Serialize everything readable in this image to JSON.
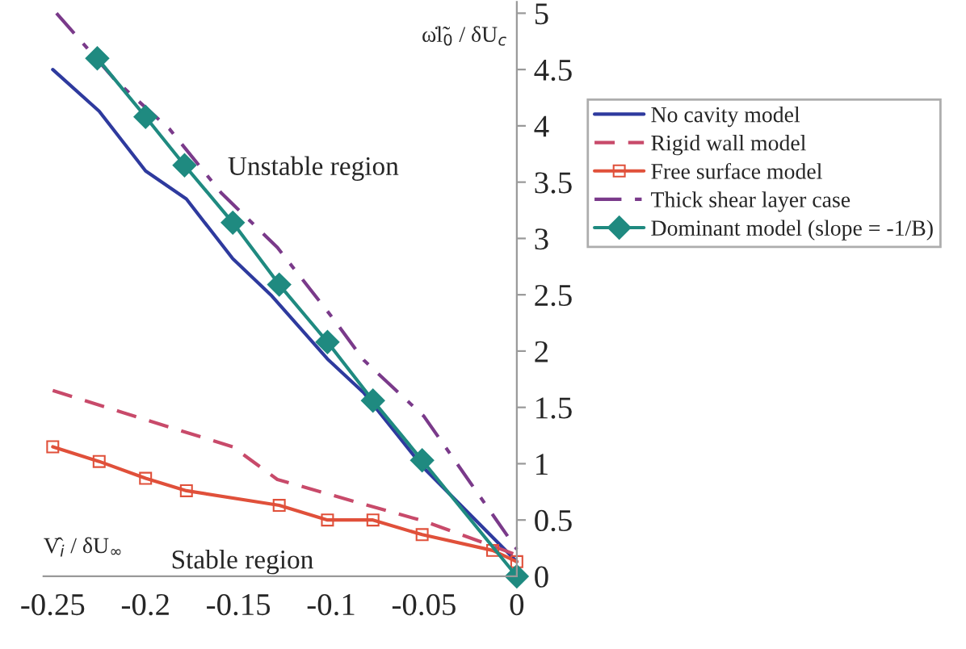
{
  "chart_data": {
    "type": "line",
    "xlabel": "V̂$_{i}$ / δU$_{∞}$",
    "ylabel": "ω̇l̃$_{0}$ / δU$_{c}$",
    "annotations": [
      "Unstable region",
      "Stable region"
    ],
    "series": [
      {
        "name": "No cavity model",
        "color": "#2e3a9e",
        "line_style": "solid",
        "marker": "none",
        "x": [
          -0.25,
          -0.225,
          -0.2,
          -0.178,
          -0.153,
          -0.132,
          -0.102,
          -0.0825,
          -0.066,
          -0.05,
          0
        ],
        "values": [
          4.5,
          4.13,
          3.6,
          3.35,
          2.82,
          2.49,
          1.93,
          1.63,
          1.29,
          0.96,
          0.13
        ]
      },
      {
        "name": "Rigid wall model",
        "color": "#c84a6a",
        "line_style": "dashed",
        "marker": "none",
        "x": [
          -0.25,
          -0.2,
          -0.153,
          -0.129,
          -0.0825,
          -0.05,
          0
        ],
        "values": [
          1.65,
          1.39,
          1.15,
          0.86,
          0.64,
          0.49,
          0.19
        ]
      },
      {
        "name": "Free surface model",
        "color": "#e0503a",
        "line_style": "solid",
        "marker": "square",
        "x": [
          -0.25,
          -0.225,
          -0.2,
          -0.178,
          -0.128,
          -0.102,
          -0.0775,
          -0.051,
          -0.013,
          0
        ],
        "values": [
          1.15,
          1.02,
          0.87,
          0.76,
          0.63,
          0.5,
          0.5,
          0.37,
          0.23,
          0.13
        ]
      },
      {
        "name": "Thick shear layer case",
        "color": "#7a3a8a",
        "line_style": "dashdot",
        "marker": "none",
        "x": [
          -0.248,
          -0.216,
          -0.187,
          -0.159,
          -0.129,
          -0.099,
          -0.0825,
          -0.05,
          0
        ],
        "values": [
          5.0,
          4.4,
          3.97,
          3.4,
          2.92,
          2.29,
          1.92,
          1.42,
          0.24
        ]
      },
      {
        "name": "Dominant model (slope = -1/B)",
        "color": "#1f8a80",
        "line_style": "solid",
        "marker": "diamond",
        "x": [
          -0.226,
          -0.2,
          -0.179,
          -0.153,
          -0.128,
          -0.102,
          -0.0775,
          -0.051,
          0
        ],
        "values": [
          4.6,
          4.08,
          3.65,
          3.14,
          2.59,
          2.08,
          1.56,
          1.03,
          0
        ]
      }
    ],
    "xlim": [
      -0.255,
      0
    ],
    "ylim": [
      0,
      5.1
    ],
    "xticks": [
      -0.25,
      -0.2,
      -0.15,
      -0.1,
      -0.05,
      0
    ],
    "yticks": [
      0,
      0.5,
      1,
      1.5,
      2,
      2.5,
      3,
      3.5,
      4,
      4.5,
      5
    ],
    "grid": false,
    "legend": "right"
  }
}
